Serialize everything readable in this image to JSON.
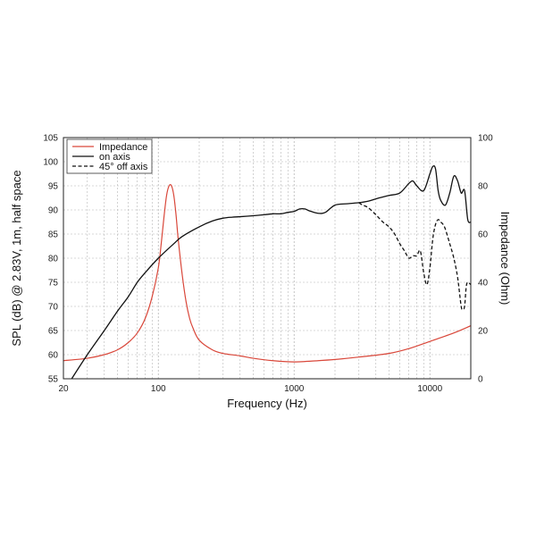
{
  "chart_data": {
    "type": "line",
    "xlabel": "Frequency (Hz)",
    "ylabel_left": "SPL (dB) @ 2.83V, 1m, half space",
    "ylabel_right": "Impedance (Ohm)",
    "x_scale": "log",
    "xlim": [
      20,
      20000
    ],
    "ylim_left": [
      55,
      105
    ],
    "ylim_right": [
      0,
      100
    ],
    "x_ticks": [
      20,
      100,
      1000,
      10000
    ],
    "x_tick_labels": [
      "20",
      "100",
      "1000",
      "10000"
    ],
    "y_left_ticks": [
      55,
      60,
      65,
      70,
      75,
      80,
      85,
      90,
      95,
      100,
      105
    ],
    "y_left_tick_labels": [
      "55",
      "60",
      "65",
      "70",
      "75",
      "80",
      "85",
      "90",
      "95",
      "100",
      "105"
    ],
    "y_right_ticks": [
      0,
      20,
      40,
      60,
      80,
      100
    ],
    "y_right_tick_labels": [
      "0",
      "20",
      "40",
      "60",
      "80",
      "100"
    ],
    "grid": true,
    "legend_position": "top-left",
    "colors": {
      "impedance": "#d9473a",
      "on_axis": "#111111",
      "off_axis": "#111111",
      "grid": "#b5b5b5"
    },
    "series": [
      {
        "name": "Impedance",
        "axis": "right",
        "style": "solid",
        "color": "#d9473a",
        "x": [
          20,
          30,
          40,
          50,
          60,
          70,
          80,
          90,
          100,
          105,
          110,
          115,
          120,
          125,
          130,
          135,
          140,
          150,
          160,
          170,
          180,
          200,
          250,
          300,
          400,
          500,
          700,
          1000,
          1500,
          2000,
          3000,
          5000,
          7000,
          10000,
          15000,
          20000
        ],
        "y": [
          7.5,
          8.5,
          10,
          12,
          15,
          19,
          25,
          34,
          46,
          56,
          67,
          76,
          80,
          80,
          76,
          68,
          58,
          43,
          32,
          25,
          21,
          16,
          12,
          10.5,
          9.5,
          8.5,
          7.5,
          7,
          7.5,
          8,
          9,
          10.5,
          12.5,
          15.5,
          19,
          22
        ]
      },
      {
        "name": "on axis",
        "axis": "left",
        "style": "solid",
        "color": "#111111",
        "x": [
          23,
          30,
          40,
          50,
          60,
          70,
          80,
          100,
          130,
          150,
          200,
          250,
          300,
          350,
          400,
          500,
          600,
          700,
          800,
          900,
          1000,
          1100,
          1200,
          1300,
          1500,
          1700,
          2000,
          2500,
          3000,
          3500,
          4000,
          5000,
          6000,
          7000,
          7500,
          8000,
          9000,
          10000,
          10500,
          11000,
          11500,
          12000,
          13000,
          14000,
          15000,
          16000,
          17000,
          18000,
          19000,
          20000
        ],
        "y": [
          55,
          60,
          65,
          69,
          72,
          75,
          77,
          80,
          83,
          84.5,
          86.5,
          87.7,
          88.3,
          88.5,
          88.6,
          88.8,
          89,
          89.2,
          89.2,
          89.5,
          89.7,
          90.2,
          90.2,
          89.8,
          89.3,
          89.5,
          91,
          91.3,
          91.5,
          91.8,
          92.3,
          93,
          93.5,
          95.5,
          96,
          95,
          94,
          97.5,
          99,
          98.5,
          94,
          92,
          91,
          93.5,
          97,
          96,
          93.5,
          94,
          88,
          87.5
        ]
      },
      {
        "name": "45° off axis",
        "axis": "left",
        "style": "dashed",
        "color": "#111111",
        "x": [
          3000,
          3200,
          3500,
          4000,
          4500,
          5000,
          5500,
          6000,
          6500,
          7000,
          7500,
          8000,
          8500,
          9000,
          9500,
          10000,
          10500,
          11000,
          11500,
          12000,
          12500,
          13000,
          14000,
          15000,
          16000,
          17000,
          17500,
          18000,
          18500,
          19000,
          20000
        ],
        "y": [
          91.5,
          91,
          90.5,
          89,
          87.5,
          86.5,
          85,
          83,
          81.5,
          80,
          80.5,
          80.5,
          81.5,
          77,
          74.5,
          78,
          84,
          87,
          88,
          87.5,
          87,
          86,
          83,
          80,
          76,
          70,
          69.5,
          70,
          74,
          75,
          74.5
        ]
      }
    ]
  }
}
